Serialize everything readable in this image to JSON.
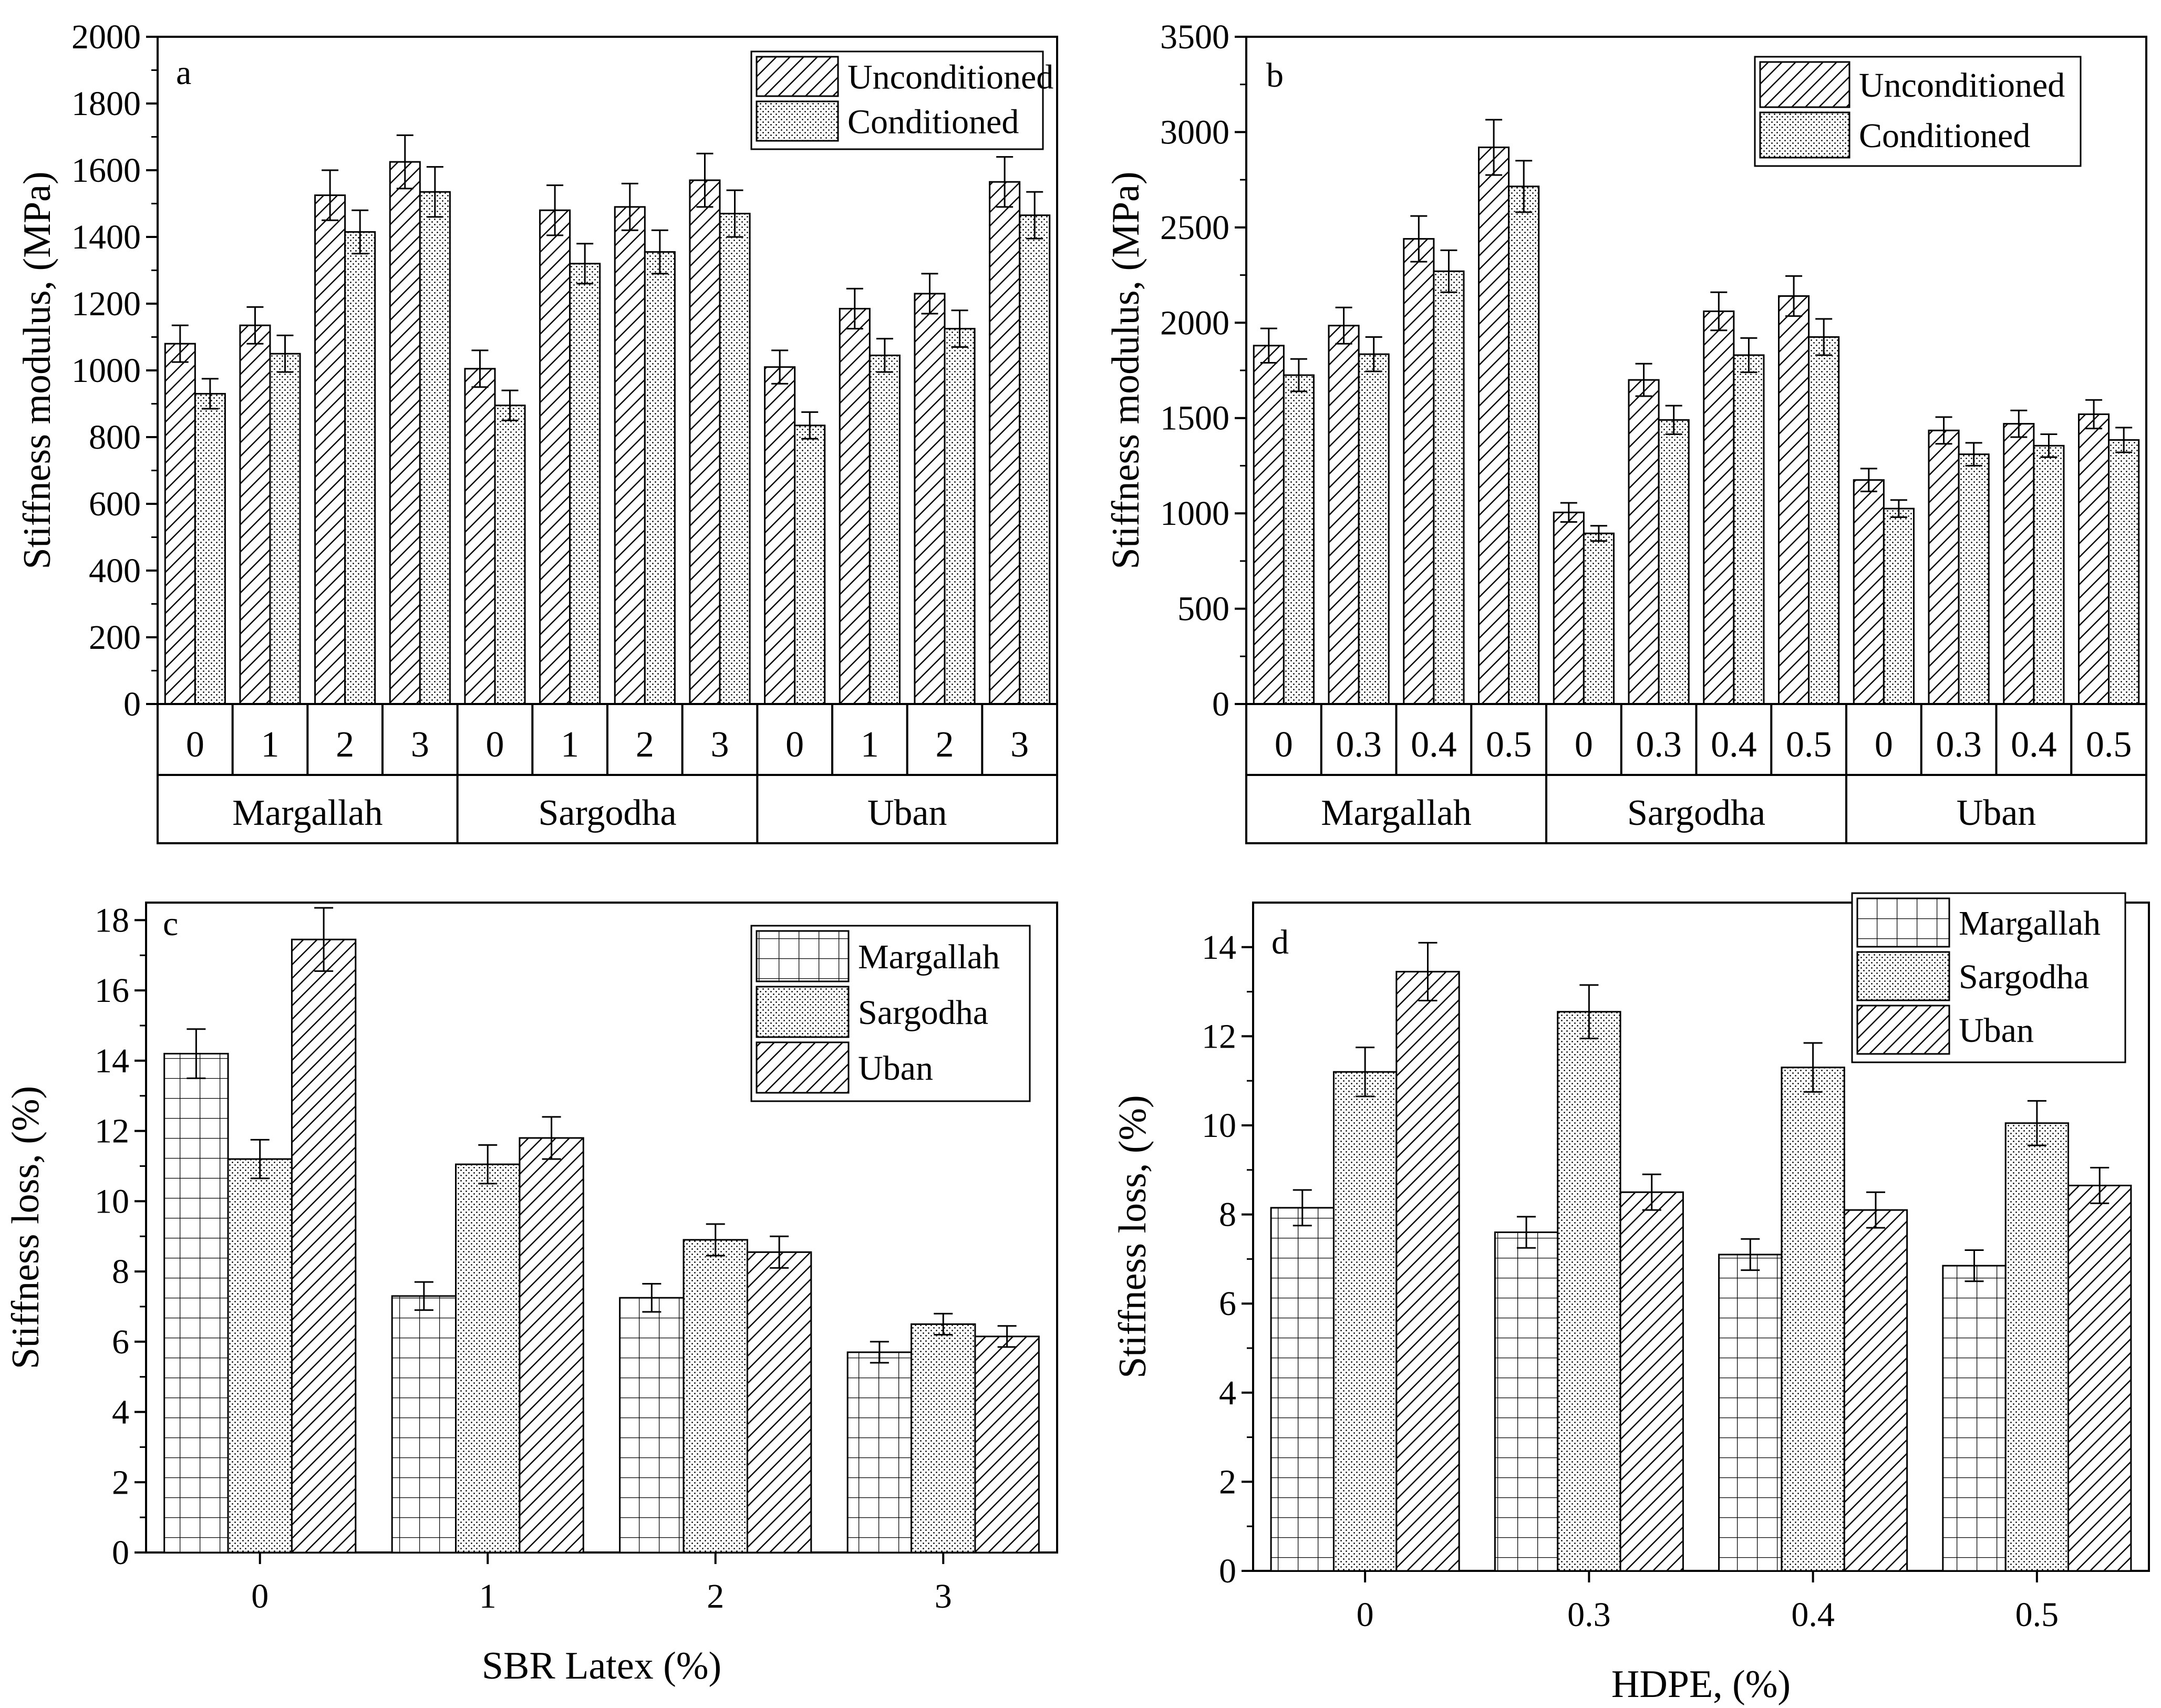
{
  "chart_data": [
    {
      "type": "bar",
      "panel": "a",
      "ylabel": "Stiffness modulus, (MPa)",
      "ylim": [
        0,
        2000
      ],
      "yticks": [
        0,
        200,
        400,
        600,
        800,
        1000,
        1200,
        1400,
        1600,
        1800,
        2000
      ],
      "groups": [
        "Margallah",
        "Sargodha",
        "Uban"
      ],
      "levels": [
        "0",
        "1",
        "2",
        "3"
      ],
      "series": [
        {
          "name": "Unconditioned",
          "pattern": "hatch",
          "values": [
            [
              1080,
              1135,
              1525,
              1625
            ],
            [
              1005,
              1480,
              1490,
              1570
            ],
            [
              1010,
              1185,
              1230,
              1565
            ]
          ],
          "errors": [
            [
              55,
              55,
              75,
              80
            ],
            [
              55,
              75,
              70,
              80
            ],
            [
              50,
              60,
              60,
              75
            ]
          ]
        },
        {
          "name": "Conditioned",
          "pattern": "dots",
          "values": [
            [
              930,
              1050,
              1415,
              1535
            ],
            [
              895,
              1320,
              1355,
              1470
            ],
            [
              835,
              1045,
              1125,
              1465
            ]
          ],
          "errors": [
            [
              45,
              55,
              65,
              75
            ],
            [
              45,
              60,
              65,
              70
            ],
            [
              40,
              50,
              55,
              70
            ]
          ]
        }
      ],
      "legend_position": "top-right"
    },
    {
      "type": "bar",
      "panel": "b",
      "ylabel": "Stiffness modulus, (MPa)",
      "ylim": [
        0,
        3500
      ],
      "yticks": [
        0,
        500,
        1000,
        1500,
        2000,
        2500,
        3000,
        3500
      ],
      "groups": [
        "Margallah",
        "Sargodha",
        "Uban"
      ],
      "levels": [
        "0",
        "0.3",
        "0.4",
        "0.5"
      ],
      "series": [
        {
          "name": "Unconditioned",
          "pattern": "hatch",
          "values": [
            [
              1880,
              1985,
              2440,
              2920
            ],
            [
              1005,
              1700,
              2060,
              2140
            ],
            [
              1175,
              1435,
              1470,
              1520
            ]
          ],
          "errors": [
            [
              90,
              95,
              120,
              145
            ],
            [
              50,
              85,
              100,
              105
            ],
            [
              60,
              70,
              70,
              75
            ]
          ]
        },
        {
          "name": "Conditioned",
          "pattern": "dots",
          "values": [
            [
              1725,
              1835,
              2270,
              2715
            ],
            [
              895,
              1490,
              1830,
              1925
            ],
            [
              1025,
              1310,
              1355,
              1385
            ]
          ],
          "errors": [
            [
              85,
              90,
              110,
              135
            ],
            [
              40,
              75,
              90,
              95
            ],
            [
              45,
              60,
              60,
              65
            ]
          ]
        }
      ],
      "legend_position": "top-right"
    },
    {
      "type": "bar",
      "panel": "c",
      "xlabel": "SBR Latex (%)",
      "ylabel": "Stiffness loss, (%)",
      "ylim": [
        0,
        18.5
      ],
      "yticks": [
        0,
        2,
        4,
        6,
        8,
        10,
        12,
        14,
        16,
        18
      ],
      "categories": [
        "0",
        "1",
        "2",
        "3"
      ],
      "series": [
        {
          "name": "Margallah",
          "pattern": "grid",
          "values": [
            14.2,
            7.3,
            7.25,
            5.7
          ],
          "errors": [
            0.7,
            0.4,
            0.4,
            0.3
          ]
        },
        {
          "name": "Sargodha",
          "pattern": "dots",
          "values": [
            11.2,
            11.05,
            8.9,
            6.5
          ],
          "errors": [
            0.55,
            0.55,
            0.45,
            0.3
          ]
        },
        {
          "name": "Uban",
          "pattern": "hatch",
          "values": [
            17.45,
            11.8,
            8.55,
            6.15
          ],
          "errors": [
            0.9,
            0.6,
            0.45,
            0.3
          ]
        }
      ],
      "legend_position": "top-right"
    },
    {
      "type": "bar",
      "panel": "d",
      "xlabel": "HDPE, (%)",
      "ylabel": "Stiffness loss, (%)",
      "ylim": [
        0,
        15
      ],
      "yticks": [
        0,
        2,
        4,
        6,
        8,
        10,
        12,
        14
      ],
      "categories": [
        "0",
        "0.3",
        "0.4",
        "0.5"
      ],
      "series": [
        {
          "name": "Margallah",
          "pattern": "grid",
          "values": [
            8.15,
            7.6,
            7.1,
            6.85
          ],
          "errors": [
            0.4,
            0.35,
            0.35,
            0.35
          ]
        },
        {
          "name": "Sargodha",
          "pattern": "dots",
          "values": [
            11.2,
            12.55,
            11.3,
            10.05
          ],
          "errors": [
            0.55,
            0.6,
            0.55,
            0.5
          ]
        },
        {
          "name": "Uban",
          "pattern": "hatch",
          "values": [
            13.45,
            8.5,
            8.1,
            8.65
          ],
          "errors": [
            0.65,
            0.4,
            0.4,
            0.4
          ]
        }
      ],
      "legend_position": "top-right"
    }
  ]
}
